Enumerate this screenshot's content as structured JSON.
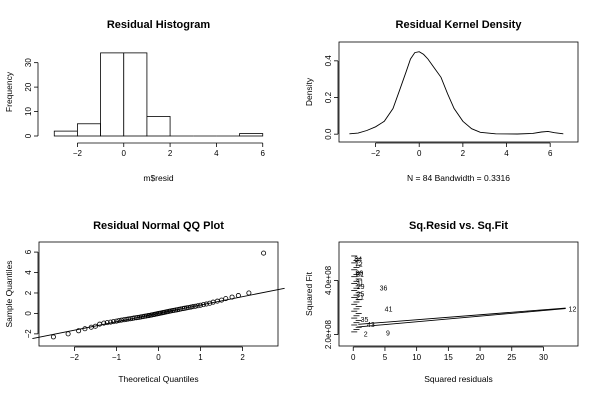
{
  "chart_data": [
    {
      "type": "bar",
      "title": "Residual Histogram",
      "xlabel": "m$resid",
      "ylabel": "Frequency",
      "xlim": [
        -3.4,
        6.4
      ],
      "ylim": [
        0,
        36
      ],
      "xticks": [
        -2,
        0,
        2,
        4,
        6
      ],
      "yticks": [
        0,
        10,
        20,
        30
      ],
      "bins": [
        {
          "from": -3,
          "to": -2,
          "count": 2
        },
        {
          "from": -2,
          "to": -1,
          "count": 5
        },
        {
          "from": -1,
          "to": 0,
          "count": 34
        },
        {
          "from": 0,
          "to": 1,
          "count": 34
        },
        {
          "from": 1,
          "to": 2,
          "count": 8
        },
        {
          "from": 2,
          "to": 3,
          "count": 0
        },
        {
          "from": 3,
          "to": 4,
          "count": 0
        },
        {
          "from": 4,
          "to": 5,
          "count": 0
        },
        {
          "from": 5,
          "to": 6,
          "count": 1
        }
      ]
    },
    {
      "type": "line",
      "title": "Residual Kernel Density",
      "xlabel": "N = 84   Bandwidth = 0.3316",
      "ylabel": "Density",
      "xlim": [
        -3.4,
        7.0
      ],
      "ylim": [
        -0.01,
        0.47
      ],
      "xticks": [
        -2,
        0,
        2,
        4,
        6
      ],
      "yticks": [
        0.0,
        0.2,
        0.4
      ],
      "x": [
        -3.2,
        -2.8,
        -2.4,
        -2.0,
        -1.6,
        -1.2,
        -0.9,
        -0.6,
        -0.4,
        -0.2,
        0.0,
        0.2,
        0.4,
        0.7,
        1.0,
        1.3,
        1.6,
        2.0,
        2.4,
        2.8,
        3.5,
        4.5,
        5.2,
        5.6,
        5.9,
        6.2,
        6.6
      ],
      "y": [
        0.002,
        0.006,
        0.02,
        0.04,
        0.07,
        0.14,
        0.24,
        0.34,
        0.41,
        0.445,
        0.45,
        0.435,
        0.41,
        0.36,
        0.31,
        0.22,
        0.14,
        0.07,
        0.03,
        0.01,
        0.002,
        0.001,
        0.004,
        0.012,
        0.015,
        0.008,
        0.002
      ]
    },
    {
      "type": "scatter",
      "title": "Residual Normal QQ Plot",
      "xlabel": "Theoretical Quantiles",
      "ylabel": "Sample Quantiles",
      "xlim": [
        -2.7,
        2.7
      ],
      "ylim": [
        -2.6,
        6.4
      ],
      "xticks": [
        -2,
        -1,
        0,
        1,
        2
      ],
      "yticks": [
        -2,
        0,
        2,
        4,
        6
      ],
      "points": [
        [
          -2.5,
          -2.3
        ],
        [
          -2.15,
          -2.0
        ],
        [
          -1.9,
          -1.7
        ],
        [
          -1.75,
          -1.5
        ],
        [
          -1.6,
          -1.35
        ],
        [
          -1.5,
          -1.25
        ],
        [
          -1.4,
          -1.05
        ],
        [
          -1.3,
          -0.95
        ],
        [
          -1.22,
          -0.9
        ],
        [
          -1.14,
          -0.85
        ],
        [
          -1.07,
          -0.8
        ],
        [
          -1.0,
          -0.75
        ],
        [
          -0.94,
          -0.7
        ],
        [
          -0.88,
          -0.66
        ],
        [
          -0.82,
          -0.62
        ],
        [
          -0.77,
          -0.58
        ],
        [
          -0.72,
          -0.55
        ],
        [
          -0.67,
          -0.52
        ],
        [
          -0.62,
          -0.48
        ],
        [
          -0.58,
          -0.45
        ],
        [
          -0.53,
          -0.42
        ],
        [
          -0.49,
          -0.4
        ],
        [
          -0.45,
          -0.37
        ],
        [
          -0.41,
          -0.34
        ],
        [
          -0.37,
          -0.31
        ],
        [
          -0.33,
          -0.28
        ],
        [
          -0.29,
          -0.25
        ],
        [
          -0.25,
          -0.22
        ],
        [
          -0.22,
          -0.2
        ],
        [
          -0.18,
          -0.17
        ],
        [
          -0.15,
          -0.14
        ],
        [
          -0.11,
          -0.11
        ],
        [
          -0.08,
          -0.08
        ],
        [
          -0.04,
          -0.05
        ],
        [
          -0.01,
          -0.02
        ],
        [
          0.02,
          0.01
        ],
        [
          0.05,
          0.03
        ],
        [
          0.09,
          0.06
        ],
        [
          0.12,
          0.09
        ],
        [
          0.15,
          0.12
        ],
        [
          0.19,
          0.15
        ],
        [
          0.22,
          0.18
        ],
        [
          0.26,
          0.21
        ],
        [
          0.29,
          0.24
        ],
        [
          0.33,
          0.27
        ],
        [
          0.37,
          0.3
        ],
        [
          0.41,
          0.33
        ],
        [
          0.45,
          0.36
        ],
        [
          0.49,
          0.4
        ],
        [
          0.53,
          0.43
        ],
        [
          0.58,
          0.47
        ],
        [
          0.62,
          0.5
        ],
        [
          0.67,
          0.54
        ],
        [
          0.72,
          0.58
        ],
        [
          0.77,
          0.62
        ],
        [
          0.82,
          0.66
        ],
        [
          0.88,
          0.7
        ],
        [
          0.94,
          0.75
        ],
        [
          1.0,
          0.8
        ],
        [
          1.07,
          0.86
        ],
        [
          1.14,
          0.92
        ],
        [
          1.22,
          1.0
        ],
        [
          1.3,
          1.1
        ],
        [
          1.4,
          1.2
        ],
        [
          1.5,
          1.3
        ],
        [
          1.6,
          1.45
        ],
        [
          1.75,
          1.6
        ],
        [
          1.9,
          1.75
        ],
        [
          2.15,
          2.0
        ],
        [
          2.5,
          5.9
        ]
      ],
      "reference_line": {
        "intercept": 0.0,
        "slope": 0.82
      }
    },
    {
      "type": "scatter",
      "title": "Sq.Resid vs. Sq.Fit",
      "xlabel": "Squared residuals",
      "ylabel": "Squared Fit",
      "xlim": [
        -1.3,
        34.5
      ],
      "ylim": [
        180000000,
        520000000
      ],
      "xticks": [
        0,
        5,
        10,
        15,
        20,
        25,
        30
      ],
      "yticks": [
        200000000,
        400000000
      ],
      "ytick_labels": [
        "2.0e+08",
        "4.0e+08"
      ],
      "point_labels": [
        {
          "label": "84",
          "x": 0.0,
          "y": 480000000
        },
        {
          "label": "72",
          "x": 0.1,
          "y": 460000000
        },
        {
          "label": "80",
          "x": 0.2,
          "y": 428000000
        },
        {
          "label": "81",
          "x": 0.3,
          "y": 422000000
        },
        {
          "label": "31",
          "x": 0.25,
          "y": 395000000
        },
        {
          "label": "29",
          "x": 0.4,
          "y": 378000000
        },
        {
          "label": "25",
          "x": 0.35,
          "y": 350000000
        },
        {
          "label": "21",
          "x": 0.3,
          "y": 338000000
        },
        {
          "label": "36",
          "x": 4.0,
          "y": 373000000
        },
        {
          "label": "41",
          "x": 4.8,
          "y": 295000000
        },
        {
          "label": "35",
          "x": 1.0,
          "y": 255000000
        },
        {
          "label": "43",
          "x": 2.0,
          "y": 237000000
        },
        {
          "label": "2",
          "x": 1.5,
          "y": 202000000
        },
        {
          "label": "9",
          "x": 5.0,
          "y": 206000000
        },
        {
          "label": "12",
          "x": 33.8,
          "y": 295000000
        }
      ],
      "segments": [
        [
          [
            0.6,
            228000000
          ],
          [
            33.5,
            296000000
          ]
        ],
        [
          [
            0.8,
            238000000
          ],
          [
            33.5,
            298000000
          ]
        ]
      ]
    }
  ]
}
